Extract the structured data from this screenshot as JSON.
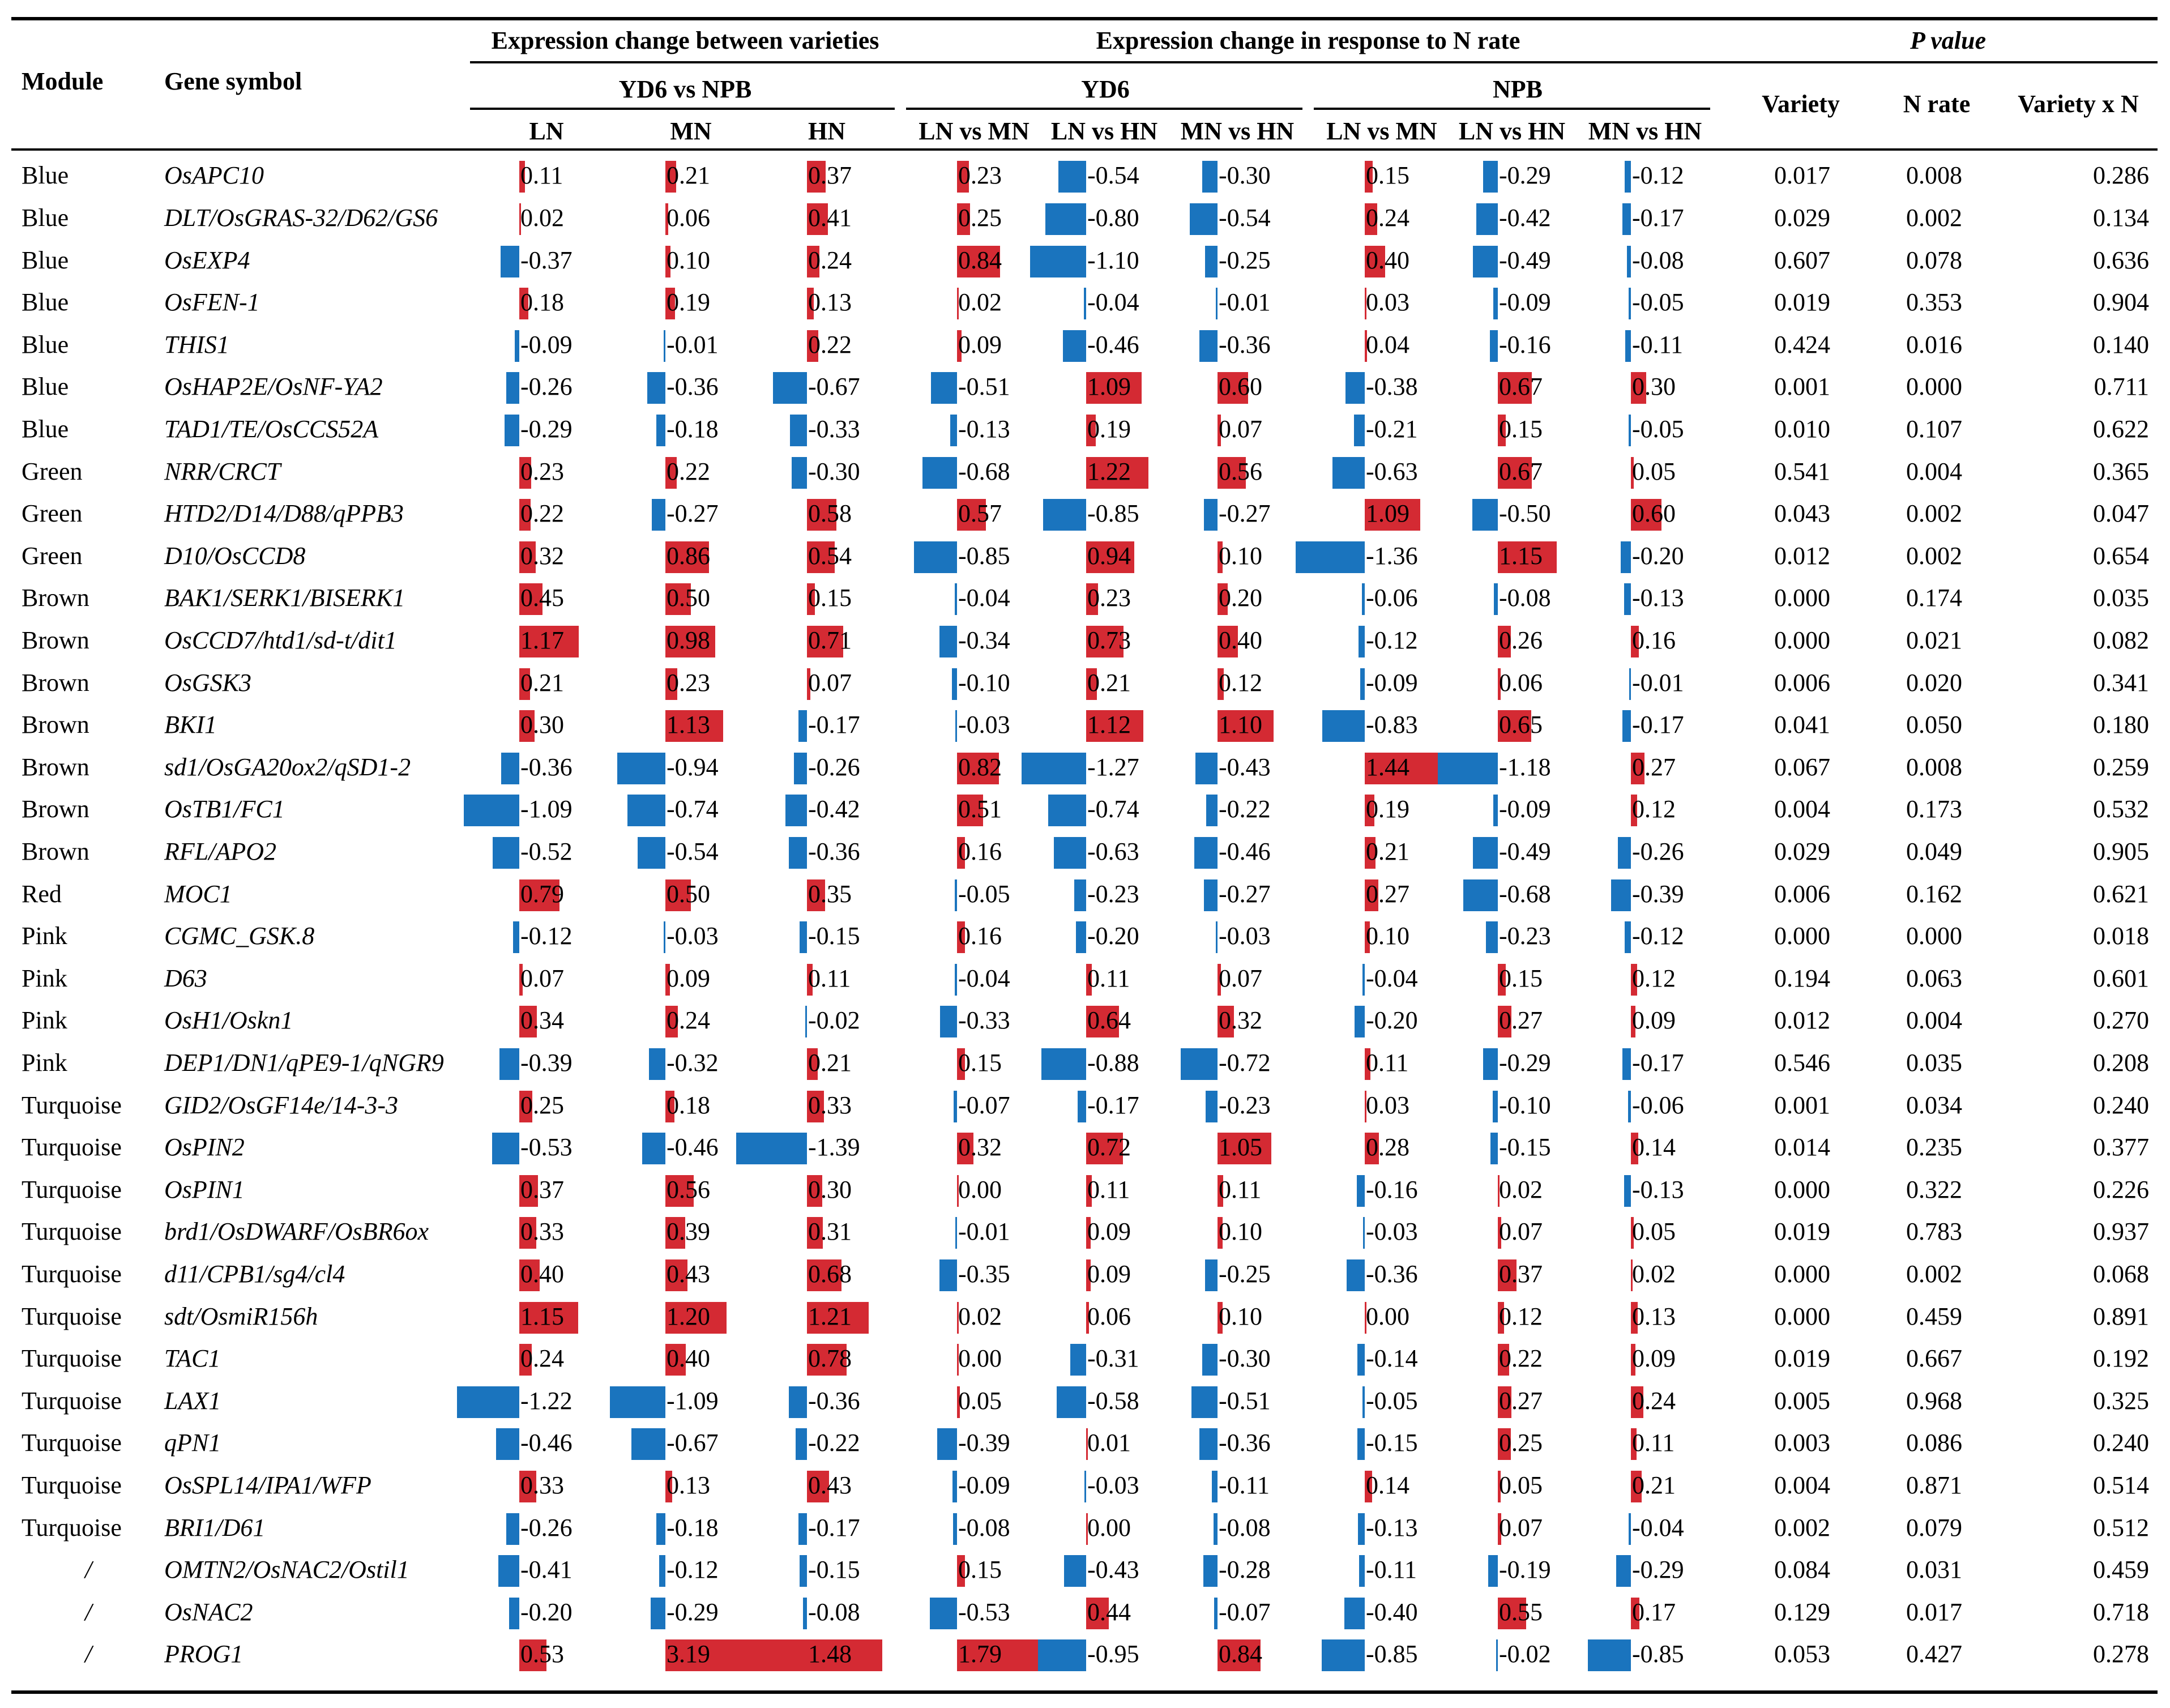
{
  "header": {
    "module": "Module",
    "gene_symbol": "Gene symbol",
    "group_variety": "Expression change between varieties",
    "group_nrate": "Expression change in response to N rate",
    "group_p": "P value",
    "yd6_vs_npb": "YD6 vs NPB",
    "yd6": "YD6",
    "npb": "NPB",
    "ln": "LN",
    "mn": "MN",
    "hn": "HN",
    "ln_vs_mn": "LN vs MN",
    "ln_vs_hn": "LN vs HN",
    "mn_vs_hn": "MN vs HN",
    "variety": "Variety",
    "n_rate": "N rate",
    "variety_x_n": "Variety x N"
  },
  "colors": {
    "positive": "#d42a33",
    "negative": "#1a74be",
    "text": "#000000"
  },
  "rows": [
    {
      "module": "Blue",
      "gene": "OsAPC10",
      "values": [
        "0.11",
        "0.21",
        "0.37",
        "0.23",
        "-0.54",
        "-0.30",
        "0.15",
        "-0.29",
        "-0.12"
      ],
      "p": [
        "0.017",
        "0.008",
        "0.286"
      ]
    },
    {
      "module": "Blue",
      "gene": "DLT/OsGRAS-32/D62/GS6",
      "values": [
        "0.02",
        "0.06",
        "0.41",
        "0.25",
        "-0.80",
        "-0.54",
        "0.24",
        "-0.42",
        "-0.17"
      ],
      "p": [
        "0.029",
        "0.002",
        "0.134"
      ]
    },
    {
      "module": "Blue",
      "gene": "OsEXP4",
      "values": [
        "-0.37",
        "0.10",
        "0.24",
        "0.84",
        "-1.10",
        "-0.25",
        "0.40",
        "-0.49",
        "-0.08"
      ],
      "p": [
        "0.607",
        "0.078",
        "0.636"
      ]
    },
    {
      "module": "Blue",
      "gene": "OsFEN-1",
      "values": [
        "0.18",
        "0.19",
        "0.13",
        "0.02",
        "-0.04",
        "-0.01",
        "0.03",
        "-0.09",
        "-0.05"
      ],
      "p": [
        "0.019",
        "0.353",
        "0.904"
      ]
    },
    {
      "module": "Blue",
      "gene": "THIS1",
      "values": [
        "-0.09",
        "-0.01",
        "0.22",
        "0.09",
        "-0.46",
        "-0.36",
        "0.04",
        "-0.16",
        "-0.11"
      ],
      "p": [
        "0.424",
        "0.016",
        "0.140"
      ]
    },
    {
      "module": "Blue",
      "gene": "OsHAP2E/OsNF-YA2",
      "values": [
        "-0.26",
        "-0.36",
        "-0.67",
        "-0.51",
        "1.09",
        "0.60",
        "-0.38",
        "0.67",
        "0.30"
      ],
      "p": [
        "0.001",
        "0.000",
        "0.711"
      ]
    },
    {
      "module": "Blue",
      "gene": "TAD1/TE/OsCCS52A",
      "values": [
        "-0.29",
        "-0.18",
        "-0.33",
        "-0.13",
        "0.19",
        "0.07",
        "-0.21",
        "0.15",
        "-0.05"
      ],
      "p": [
        "0.010",
        "0.107",
        "0.622"
      ]
    },
    {
      "module": "Green",
      "gene": "NRR/CRCT",
      "values": [
        "0.23",
        "0.22",
        "-0.30",
        "-0.68",
        "1.22",
        "0.56",
        "-0.63",
        "0.67",
        "0.05"
      ],
      "p": [
        "0.541",
        "0.004",
        "0.365"
      ]
    },
    {
      "module": "Green",
      "gene": "HTD2/D14/D88/qPPB3",
      "values": [
        "0.22",
        "-0.27",
        "0.58",
        "0.57",
        "-0.85",
        "-0.27",
        "1.09",
        "-0.50",
        "0.60"
      ],
      "p": [
        "0.043",
        "0.002",
        "0.047"
      ]
    },
    {
      "module": "Green",
      "gene": "D10/OsCCD8",
      "values": [
        "0.32",
        "0.86",
        "0.54",
        "-0.85",
        "0.94",
        "0.10",
        "-1.36",
        "1.15",
        "-0.20"
      ],
      "p": [
        "0.012",
        "0.002",
        "0.654"
      ]
    },
    {
      "module": "Brown",
      "gene": "BAK1/SERK1/BISERK1",
      "values": [
        "0.45",
        "0.50",
        "0.15",
        "-0.04",
        "0.23",
        "0.20",
        "-0.06",
        "-0.08",
        "-0.13"
      ],
      "p": [
        "0.000",
        "0.174",
        "0.035"
      ]
    },
    {
      "module": "Brown",
      "gene": "OsCCD7/htd1/sd-t/dit1",
      "values": [
        "1.17",
        "0.98",
        "0.71",
        "-0.34",
        "0.73",
        "0.40",
        "-0.12",
        "0.26",
        "0.16"
      ],
      "p": [
        "0.000",
        "0.021",
        "0.082"
      ]
    },
    {
      "module": "Brown",
      "gene": "OsGSK3",
      "values": [
        "0.21",
        "0.23",
        "0.07",
        "-0.10",
        "0.21",
        "0.12",
        "-0.09",
        "0.06",
        "-0.01"
      ],
      "p": [
        "0.006",
        "0.020",
        "0.341"
      ]
    },
    {
      "module": "Brown",
      "gene": "BKI1",
      "values": [
        "0.30",
        "1.13",
        "-0.17",
        "-0.03",
        "1.12",
        "1.10",
        "-0.83",
        "0.65",
        "-0.17"
      ],
      "p": [
        "0.041",
        "0.050",
        "0.180"
      ]
    },
    {
      "module": "Brown",
      "gene": "sd1/OsGA20ox2/qSD1-2",
      "values": [
        "-0.36",
        "-0.94",
        "-0.26",
        "0.82",
        "-1.27",
        "-0.43",
        "1.44",
        "-1.18",
        "0.27"
      ],
      "p": [
        "0.067",
        "0.008",
        "0.259"
      ]
    },
    {
      "module": "Brown",
      "gene": "OsTB1/FC1",
      "values": [
        "-1.09",
        "-0.74",
        "-0.42",
        "0.51",
        "-0.74",
        "-0.22",
        "0.19",
        "-0.09",
        "0.12"
      ],
      "p": [
        "0.004",
        "0.173",
        "0.532"
      ]
    },
    {
      "module": "Brown",
      "gene": "RFL/APO2",
      "values": [
        "-0.52",
        "-0.54",
        "-0.36",
        "0.16",
        "-0.63",
        "-0.46",
        "0.21",
        "-0.49",
        "-0.26"
      ],
      "p": [
        "0.029",
        "0.049",
        "0.905"
      ]
    },
    {
      "module": "Red",
      "gene": "MOC1",
      "values": [
        "0.79",
        "0.50",
        "0.35",
        "-0.05",
        "-0.23",
        "-0.27",
        "0.27",
        "-0.68",
        "-0.39"
      ],
      "p": [
        "0.006",
        "0.162",
        "0.621"
      ]
    },
    {
      "module": "Pink",
      "gene": "CGMC_GSK.8",
      "values": [
        "-0.12",
        "-0.03",
        "-0.15",
        "0.16",
        "-0.20",
        "-0.03",
        "0.10",
        "-0.23",
        "-0.12"
      ],
      "p": [
        "0.000",
        "0.000",
        "0.018"
      ]
    },
    {
      "module": "Pink",
      "gene": "D63",
      "values": [
        "0.07",
        "0.09",
        "0.11",
        "-0.04",
        "0.11",
        "0.07",
        "-0.04",
        "0.15",
        "0.12"
      ],
      "p": [
        "0.194",
        "0.063",
        "0.601"
      ]
    },
    {
      "module": "Pink",
      "gene": "OsH1/Oskn1",
      "values": [
        "0.34",
        "0.24",
        "-0.02",
        "-0.33",
        "0.64",
        "0.32",
        "-0.20",
        "0.27",
        "0.09"
      ],
      "p": [
        "0.012",
        "0.004",
        "0.270"
      ]
    },
    {
      "module": "Pink",
      "gene": "DEP1/DN1/qPE9-1/qNGR9",
      "values": [
        "-0.39",
        "-0.32",
        "0.21",
        "0.15",
        "-0.88",
        "-0.72",
        "0.11",
        "-0.29",
        "-0.17"
      ],
      "p": [
        "0.546",
        "0.035",
        "0.208"
      ]
    },
    {
      "module": "Turquoise",
      "gene": "GID2/OsGF14e/14-3-3",
      "values": [
        "0.25",
        "0.18",
        "0.33",
        "-0.07",
        "-0.17",
        "-0.23",
        "0.03",
        "-0.10",
        "-0.06"
      ],
      "p": [
        "0.001",
        "0.034",
        "0.240"
      ]
    },
    {
      "module": "Turquoise",
      "gene": "OsPIN2",
      "values": [
        "-0.53",
        "-0.46",
        "-1.39",
        "0.32",
        "0.72",
        "1.05",
        "0.28",
        "-0.15",
        "0.14"
      ],
      "p": [
        "0.014",
        "0.235",
        "0.377"
      ]
    },
    {
      "module": "Turquoise",
      "gene": "OsPIN1",
      "values": [
        "0.37",
        "0.56",
        "0.30",
        "0.00",
        "0.11",
        "0.11",
        "-0.16",
        "0.02",
        "-0.13"
      ],
      "p": [
        "0.000",
        "0.322",
        "0.226"
      ]
    },
    {
      "module": "Turquoise",
      "gene": "brd1/OsDWARF/OsBR6ox",
      "values": [
        "0.33",
        "0.39",
        "0.31",
        "-0.01",
        "0.09",
        "0.10",
        "-0.03",
        "0.07",
        "0.05"
      ],
      "p": [
        "0.019",
        "0.783",
        "0.937"
      ]
    },
    {
      "module": "Turquoise",
      "gene": "d11/CPB1/sg4/cl4",
      "values": [
        "0.40",
        "0.43",
        "0.68",
        "-0.35",
        "0.09",
        "-0.25",
        "-0.36",
        "0.37",
        "0.02"
      ],
      "p": [
        "0.000",
        "0.002",
        "0.068"
      ]
    },
    {
      "module": "Turquoise",
      "gene": "sdt/OsmiR156h",
      "values": [
        "1.15",
        "1.20",
        "1.21",
        "0.02",
        "0.06",
        "0.10",
        "0.00",
        "0.12",
        "0.13"
      ],
      "p": [
        "0.000",
        "0.459",
        "0.891"
      ]
    },
    {
      "module": "Turquoise",
      "gene": "TAC1",
      "values": [
        "0.24",
        "0.40",
        "0.78",
        "0.00",
        "-0.31",
        "-0.30",
        "-0.14",
        "0.22",
        "0.09"
      ],
      "p": [
        "0.019",
        "0.667",
        "0.192"
      ]
    },
    {
      "module": "Turquoise",
      "gene": "LAX1",
      "values": [
        "-1.22",
        "-1.09",
        "-0.36",
        "0.05",
        "-0.58",
        "-0.51",
        "-0.05",
        "0.27",
        "0.24"
      ],
      "p": [
        "0.005",
        "0.968",
        "0.325"
      ]
    },
    {
      "module": "Turquoise",
      "gene": "qPN1",
      "values": [
        "-0.46",
        "-0.67",
        "-0.22",
        "-0.39",
        "0.01",
        "-0.36",
        "-0.15",
        "0.25",
        "0.11"
      ],
      "p": [
        "0.003",
        "0.086",
        "0.240"
      ]
    },
    {
      "module": "Turquoise",
      "gene": "OsSPL14/IPA1/WFP",
      "values": [
        "0.33",
        "0.13",
        "0.43",
        "-0.09",
        "-0.03",
        "-0.11",
        "0.14",
        "0.05",
        "0.21"
      ],
      "p": [
        "0.004",
        "0.871",
        "0.514"
      ]
    },
    {
      "module": "Turquoise",
      "gene": "BRI1/D61",
      "values": [
        "-0.26",
        "-0.18",
        "-0.17",
        "-0.08",
        "0.00",
        "-0.08",
        "-0.13",
        "0.07",
        "-0.04"
      ],
      "p": [
        "0.002",
        "0.079",
        "0.512"
      ]
    },
    {
      "module": "/",
      "gene": "OMTN2/OsNAC2/Ostil1",
      "values": [
        "-0.41",
        "-0.12",
        "-0.15",
        "0.15",
        "-0.43",
        "-0.28",
        "-0.11",
        "-0.19",
        "-0.29"
      ],
      "p": [
        "0.084",
        "0.031",
        "0.459"
      ]
    },
    {
      "module": "/",
      "gene": "OsNAC2",
      "values": [
        "-0.20",
        "-0.29",
        "-0.08",
        "-0.53",
        "0.44",
        "-0.07",
        "-0.40",
        "0.55",
        "0.17"
      ],
      "p": [
        "0.129",
        "0.017",
        "0.718"
      ]
    },
    {
      "module": "/",
      "gene": "PROG1",
      "values": [
        "0.53",
        "3.19",
        "1.48",
        "1.79",
        "-0.95",
        "0.84",
        "-0.85",
        "-0.02",
        "-0.85"
      ],
      "p": [
        "0.053",
        "0.427",
        "0.278"
      ]
    }
  ]
}
